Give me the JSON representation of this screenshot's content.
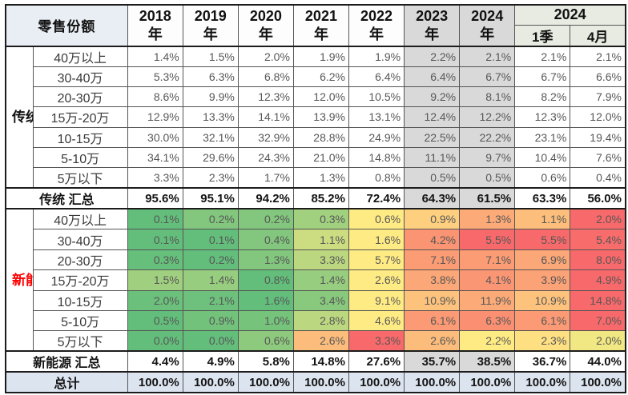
{
  "style": {
    "heat_low": "#63BE7B",
    "heat_mid": "#FFEB84",
    "heat_high": "#F8696B",
    "gray_column_bg": "#D9D9D9",
    "gray_column_indexes": [
      5,
      6
    ],
    "total_row_bg": "#DCE4F0",
    "new_energy_label_color": "#FF0000",
    "traditional_label_color": "#111111"
  },
  "chart_data": {
    "type": "table",
    "title": "零售份额",
    "unit": "%",
    "header": {
      "years": [
        "2018",
        "2019",
        "2020",
        "2021",
        "2022",
        "2023",
        "2024"
      ],
      "year_suffix": "年",
      "period_group_label": "2024",
      "periods": [
        "1季",
        "4月"
      ]
    },
    "columns": [
      "2018年",
      "2019年",
      "2020年",
      "2021年",
      "2022年",
      "2023年",
      "2024年",
      "2024 1季",
      "2024 4月"
    ],
    "sections": [
      {
        "id": "traditional",
        "group_label": "传统",
        "heatmap": false,
        "rows": [
          {
            "label": "40万以上",
            "values": [
              "1.4%",
              "1.5%",
              "2.0%",
              "1.9%",
              "1.9%",
              "2.2%",
              "2.1%",
              "2.1%",
              "2.1%"
            ]
          },
          {
            "label": "30-40万",
            "values": [
              "5.3%",
              "6.3%",
              "6.8%",
              "6.2%",
              "6.4%",
              "6.4%",
              "6.7%",
              "6.7%",
              "6.6%"
            ]
          },
          {
            "label": "20-30万",
            "values": [
              "8.6%",
              "9.9%",
              "12.3%",
              "12.0%",
              "10.5%",
              "9.2%",
              "8.1%",
              "8.2%",
              "7.9%"
            ]
          },
          {
            "label": "15万-20万",
            "values": [
              "12.9%",
              "13.3%",
              "14.1%",
              "13.9%",
              "13.1%",
              "12.4%",
              "12.2%",
              "12.3%",
              "12.0%"
            ]
          },
          {
            "label": "10-15万",
            "values": [
              "30.0%",
              "32.1%",
              "32.9%",
              "28.8%",
              "24.9%",
              "22.5%",
              "22.2%",
              "23.1%",
              "19.4%"
            ]
          },
          {
            "label": "5-10万",
            "values": [
              "34.1%",
              "29.6%",
              "24.3%",
              "21.0%",
              "14.8%",
              "11.1%",
              "9.7%",
              "10.4%",
              "7.6%"
            ]
          },
          {
            "label": "5万以下",
            "values": [
              "3.3%",
              "2.3%",
              "1.7%",
              "1.3%",
              "0.8%",
              "0.5%",
              "0.5%",
              "0.6%",
              "0.4%"
            ]
          }
        ],
        "summary": {
          "label": "传统 汇总",
          "values": [
            "95.6%",
            "95.1%",
            "94.2%",
            "85.2%",
            "72.4%",
            "64.3%",
            "61.5%",
            "63.3%",
            "56.0%"
          ]
        }
      },
      {
        "id": "new-energy",
        "group_label": "新能源",
        "heatmap": true,
        "rows": [
          {
            "label": "40万以上",
            "values": [
              "0.1%",
              "0.2%",
              "0.2%",
              "0.3%",
              "0.6%",
              "0.9%",
              "1.3%",
              "1.1%",
              "2.0%"
            ]
          },
          {
            "label": "30-40万",
            "values": [
              "0.1%",
              "0.1%",
              "0.4%",
              "1.1%",
              "1.6%",
              "4.2%",
              "5.5%",
              "5.5%",
              "5.4%"
            ]
          },
          {
            "label": "20-30万",
            "values": [
              "0.3%",
              "0.2%",
              "1.3%",
              "3.3%",
              "5.7%",
              "7.1%",
              "7.1%",
              "6.9%",
              "8.0%"
            ]
          },
          {
            "label": "15万-20万",
            "values": [
              "1.5%",
              "1.4%",
              "0.8%",
              "1.4%",
              "2.6%",
              "3.8%",
              "4.1%",
              "3.9%",
              "4.9%"
            ]
          },
          {
            "label": "10-15万",
            "values": [
              "2.0%",
              "2.1%",
              "1.6%",
              "3.4%",
              "9.1%",
              "10.9%",
              "11.9%",
              "10.9%",
              "14.8%"
            ]
          },
          {
            "label": "5-10万",
            "values": [
              "0.5%",
              "0.9%",
              "1.0%",
              "2.8%",
              "4.6%",
              "6.1%",
              "6.3%",
              "6.1%",
              "7.0%"
            ]
          },
          {
            "label": "5万以下",
            "values": [
              "0.0%",
              "0.0%",
              "0.6%",
              "2.6%",
              "3.3%",
              "2.6%",
              "2.2%",
              "2.3%",
              "2.0%"
            ]
          }
        ],
        "summary": {
          "label": "新能源 汇总",
          "values": [
            "4.4%",
            "4.9%",
            "5.8%",
            "14.8%",
            "27.6%",
            "35.7%",
            "38.5%",
            "36.7%",
            "44.0%"
          ]
        }
      }
    ],
    "total_row": {
      "label": "总计",
      "values": [
        "100.0%",
        "100.0%",
        "100.0%",
        "100.0%",
        "100.0%",
        "100.0%",
        "100.0%",
        "100.0%",
        "100.0%"
      ]
    }
  }
}
